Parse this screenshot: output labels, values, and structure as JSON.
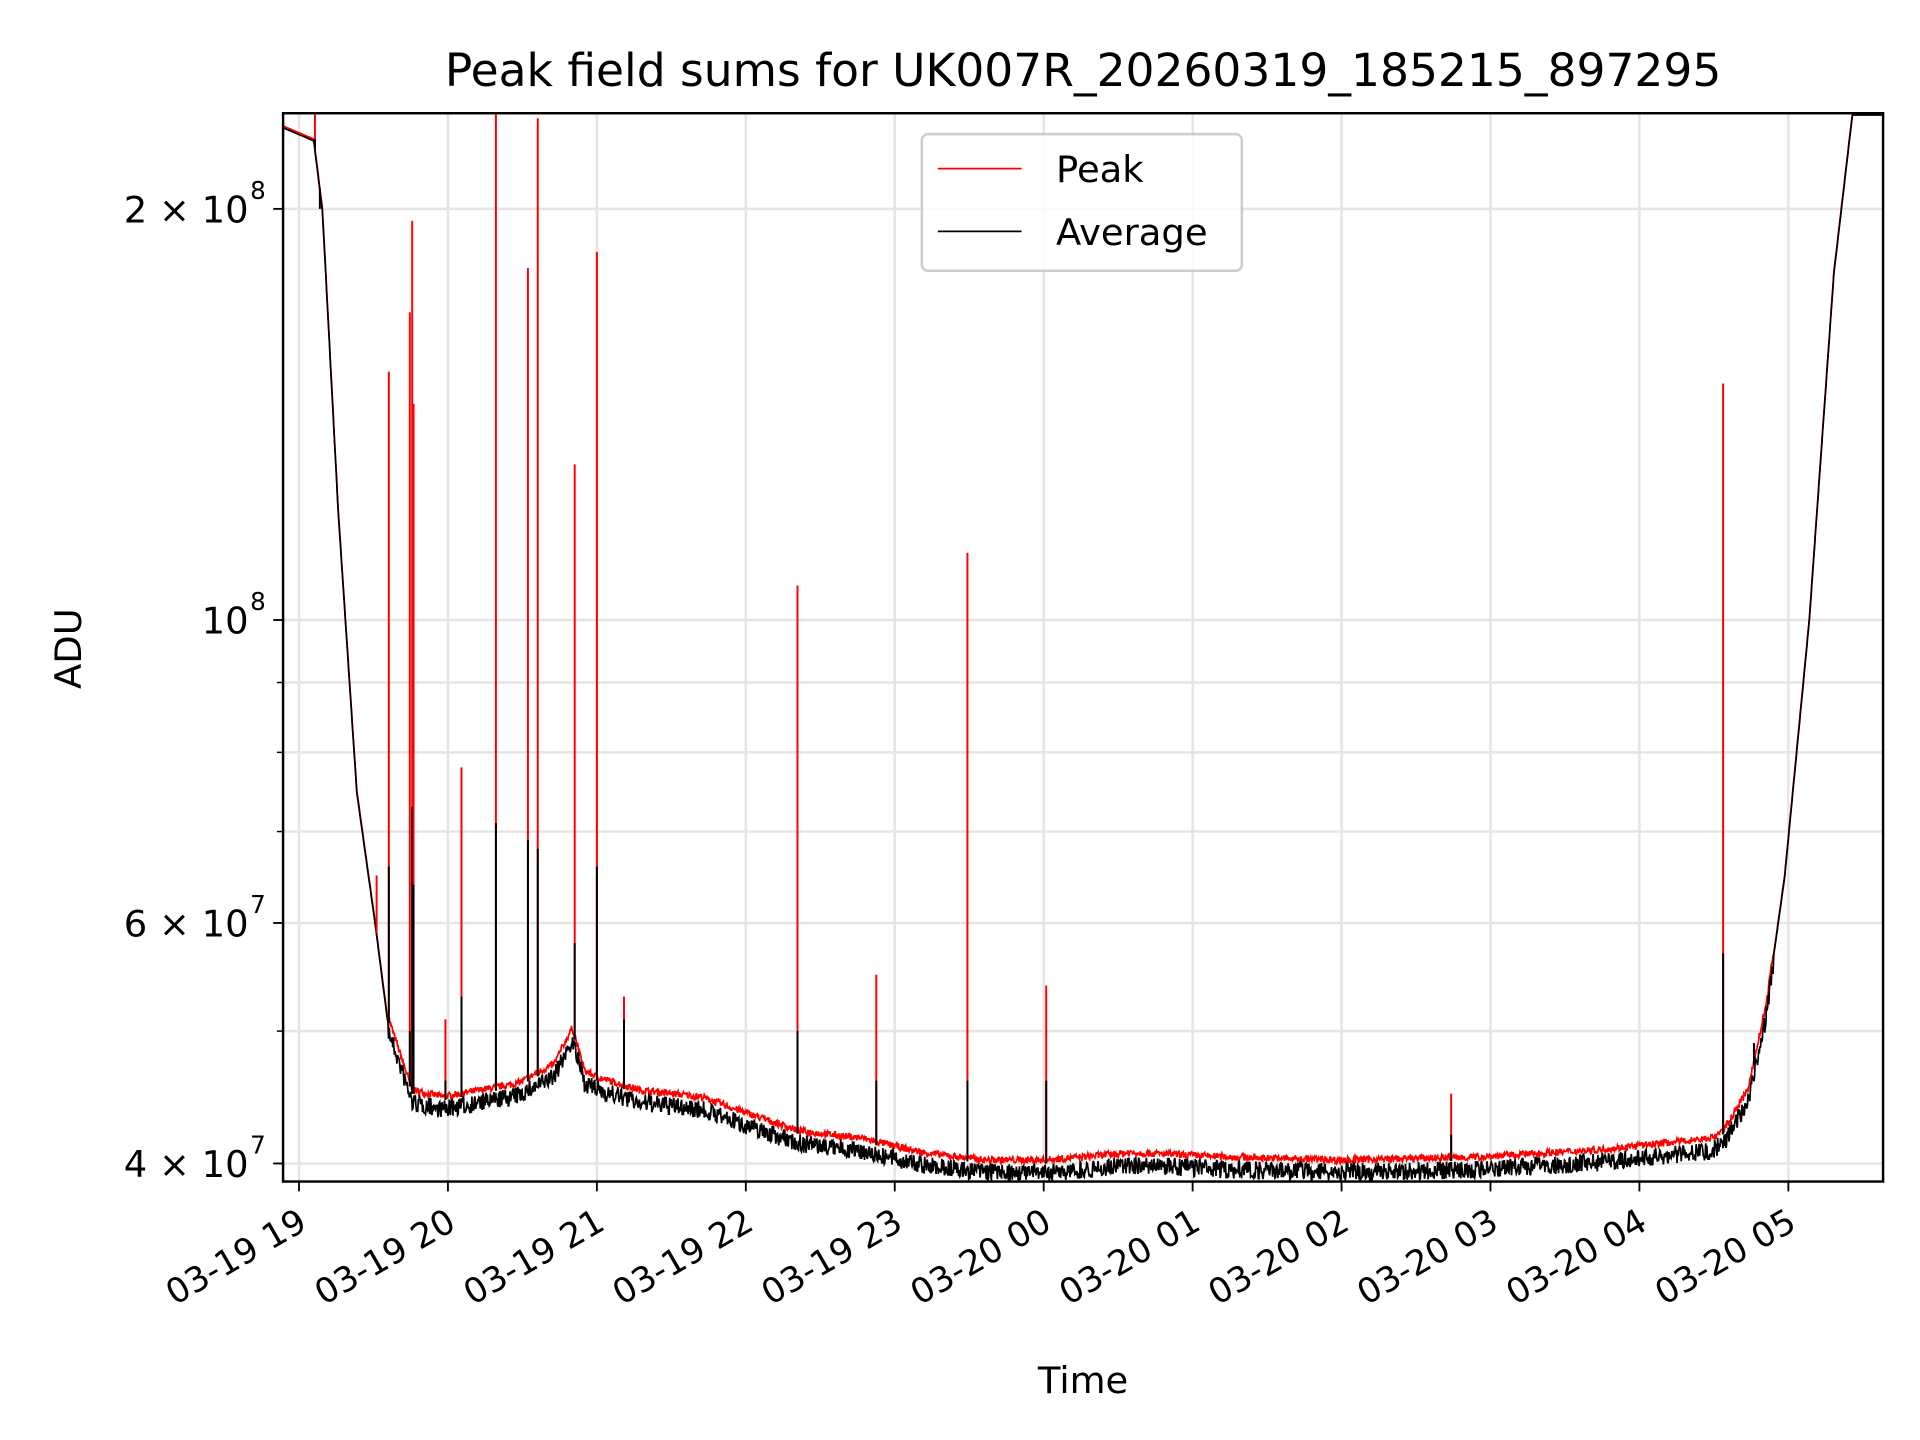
{
  "chart_data": {
    "type": "line",
    "title": "Peak field sums for UK007R_20260319_185215_897295",
    "xlabel": "Time",
    "ylabel": "ADU",
    "yscale": "log",
    "ylim": [
      38800000,
      235000000
    ],
    "xlim_hours": [
      18.893,
      29.636
    ],
    "x_unit": "hours since 03-19 00:00",
    "grid": true,
    "legend_placement": "upper-center",
    "x_ticks": [
      {
        "h": 19,
        "label": "03-19 19"
      },
      {
        "h": 20,
        "label": "03-19 20"
      },
      {
        "h": 21,
        "label": "03-19 21"
      },
      {
        "h": 22,
        "label": "03-19 22"
      },
      {
        "h": 23,
        "label": "03-19 23"
      },
      {
        "h": 24,
        "label": "03-20 00"
      },
      {
        "h": 25,
        "label": "03-20 01"
      },
      {
        "h": 26,
        "label": "03-20 02"
      },
      {
        "h": 27,
        "label": "03-20 03"
      },
      {
        "h": 28,
        "label": "03-20 04"
      },
      {
        "h": 29,
        "label": "03-20 05"
      }
    ],
    "y_major_ticks": [
      {
        "v": 40000000,
        "base": "4 × 10",
        "exp": "7"
      },
      {
        "v": 60000000,
        "base": "6 × 10",
        "exp": "7"
      },
      {
        "v": 100000000,
        "base": "10",
        "exp": "8"
      },
      {
        "v": 200000000,
        "base": "2 × 10",
        "exp": "8"
      }
    ],
    "y_minor_ticks": [
      50000000,
      70000000,
      80000000,
      90000000
    ],
    "series": [
      {
        "name": "Peak",
        "color": "#ff0000"
      },
      {
        "name": "Average",
        "color": "#000000"
      }
    ],
    "baseline": [
      [
        18.893,
        230000000
      ],
      [
        19.099,
        225000000
      ],
      [
        19.157,
        200000000
      ],
      [
        19.264,
        120000000
      ],
      [
        19.388,
        75000000
      ],
      [
        19.512,
        60000000
      ],
      [
        19.595,
        51000000
      ],
      [
        19.76,
        45000000
      ],
      [
        19.967,
        44500000
      ],
      [
        20.463,
        45500000
      ],
      [
        20.711,
        47000000
      ],
      [
        20.835,
        50000000
      ],
      [
        20.917,
        46500000
      ],
      [
        21.0,
        46000000
      ],
      [
        21.289,
        45000000
      ],
      [
        21.702,
        44500000
      ],
      [
        21.95,
        43500000
      ],
      [
        22.364,
        42000000
      ],
      [
        22.777,
        41500000
      ],
      [
        23.19,
        40500000
      ],
      [
        23.603,
        40000000
      ],
      [
        24.017,
        40000000
      ],
      [
        24.595,
        40500000
      ],
      [
        25.256,
        40200000
      ],
      [
        26.0,
        40000000
      ],
      [
        26.909,
        40200000
      ],
      [
        27.736,
        40700000
      ],
      [
        28.479,
        41500000
      ],
      [
        28.562,
        42000000
      ],
      [
        28.727,
        45000000
      ],
      [
        28.851,
        52000000
      ],
      [
        28.975,
        65000000
      ],
      [
        29.14,
        100000000
      ],
      [
        29.306,
        180000000
      ],
      [
        29.43,
        235000000
      ],
      [
        29.636,
        235000000
      ]
    ],
    "spikes": [
      {
        "h": 19.107,
        "peak": 235000000,
        "avg": 225000000
      },
      {
        "h": 19.14,
        "peak": 205000000,
        "avg": 200000000
      },
      {
        "h": 19.521,
        "peak": 65000000,
        "avg": 59000000
      },
      {
        "h": 19.603,
        "peak": 152000000,
        "avg": 66000000
      },
      {
        "h": 19.744,
        "peak": 168000000,
        "avg": 50000000
      },
      {
        "h": 19.76,
        "peak": 196000000,
        "avg": 73000000
      },
      {
        "h": 19.769,
        "peak": 144000000,
        "avg": 64000000
      },
      {
        "h": 19.983,
        "peak": 51000000,
        "avg": 46000000
      },
      {
        "h": 20.091,
        "peak": 78000000,
        "avg": 53000000
      },
      {
        "h": 20.322,
        "peak": 235000000,
        "avg": 71000000
      },
      {
        "h": 20.537,
        "peak": 181000000,
        "avg": 69000000
      },
      {
        "h": 20.603,
        "peak": 233000000,
        "avg": 68000000
      },
      {
        "h": 20.851,
        "peak": 130000000,
        "avg": 58000000
      },
      {
        "h": 21.0,
        "peak": 186000000,
        "avg": 66000000
      },
      {
        "h": 21.182,
        "peak": 53000000,
        "avg": 51000000
      },
      {
        "h": 22.347,
        "peak": 106000000,
        "avg": 50000000
      },
      {
        "h": 22.876,
        "peak": 55000000,
        "avg": 46000000
      },
      {
        "h": 23.488,
        "peak": 112000000,
        "avg": 46000000
      },
      {
        "h": 24.017,
        "peak": 54000000,
        "avg": 46000000
      },
      {
        "h": 26.736,
        "peak": 45000000,
        "avg": 42000000
      },
      {
        "h": 28.562,
        "peak": 149000000,
        "avg": 57000000
      },
      {
        "h": 28.769,
        "peak": 49000000,
        "avg": 49000000
      }
    ]
  }
}
